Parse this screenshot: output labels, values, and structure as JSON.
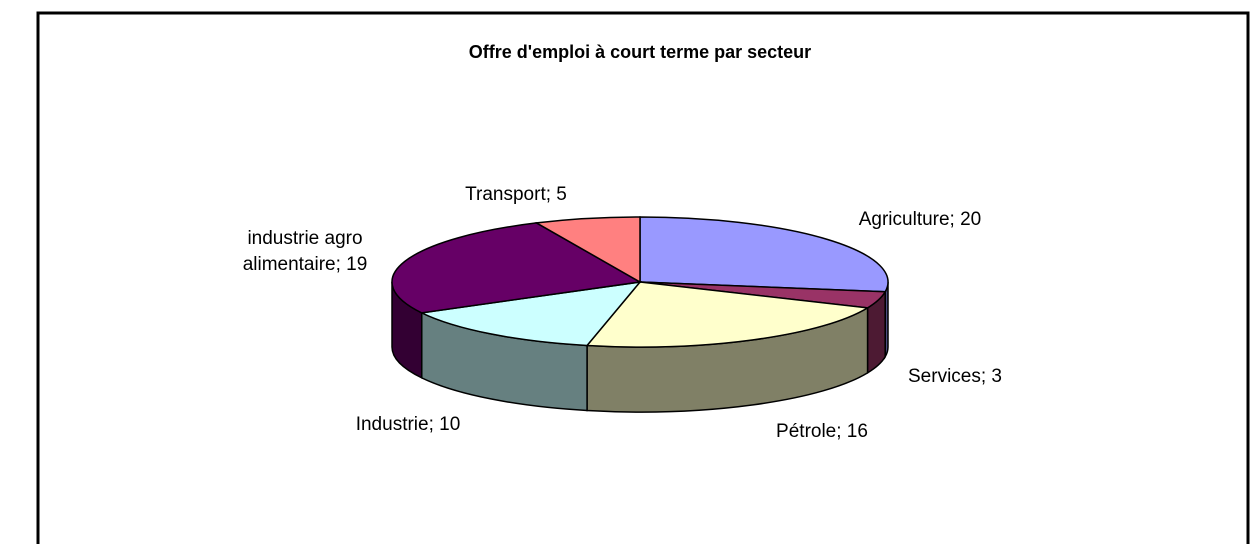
{
  "chart_data": {
    "type": "pie3d",
    "title": "Offre d'emploi à court terme par secteur",
    "values": [
      20,
      3,
      16,
      10,
      19,
      5
    ],
    "value_labels": [
      "Agriculture; 20",
      "Services; 3",
      "Pétrole; 16",
      "Industrie; 10",
      "industrie agro alimentaire; 19",
      "Transport; 5"
    ],
    "colors": [
      "#9999ff",
      "#993366",
      "#ffffcc",
      "#ccffff",
      "#660066",
      "#ff8080"
    ],
    "side_colors": [
      "#4d4d80",
      "#4d1a33",
      "#808066",
      "#668080",
      "#330033",
      "#804040"
    ]
  }
}
